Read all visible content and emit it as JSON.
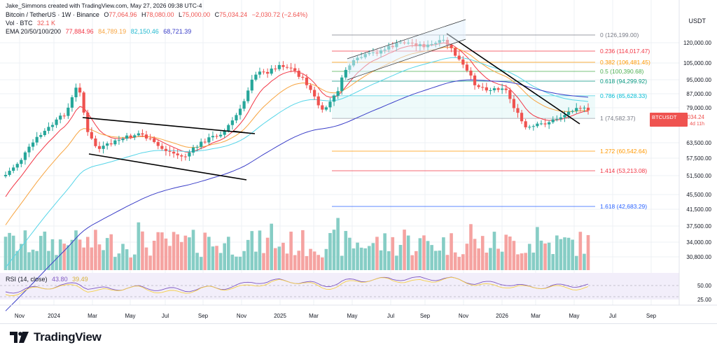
{
  "header": {
    "attribution": "Jake_Simmons created with TradingView.com, May 27, 2026 09:38 UTC-4",
    "symbol": "Bitcoin / TetherUS · 1W · Binance",
    "ohlc": {
      "o_label": "O",
      "o": "77,064.96",
      "h_label": "H",
      "h": "78,080.00",
      "l_label": "L",
      "l": "75,000.00",
      "c_label": "C",
      "c": "75,034.24",
      "change": "−2,030.72 (−2.64%)"
    },
    "vol_label": "Vol · BTC",
    "vol_value": "32.1 K",
    "ema_label": "EMA 20/50/100/200",
    "ema_values": [
      "77,884.96",
      "84,789.19",
      "82,150.46",
      "68,721.39"
    ],
    "rsi_label": "RSI (14, close)",
    "rsi_values": [
      "43.80",
      "39.49"
    ]
  },
  "colors": {
    "up": "#26a69a",
    "down": "#ef5350",
    "vol_up": "#86cdc5",
    "vol_down": "#f5a3a1",
    "ema20": "#f23645",
    "ema50": "#f7a440",
    "ema100": "#56d5e8",
    "ema200": "#3a3ec8",
    "rsi": "#7e57c2",
    "rsi_ma": "#f5cf47",
    "trendline": "#000000"
  },
  "price_axis": {
    "unit": "USDT",
    "labels": [
      "120,000.00",
      "105,000.00",
      "95,000.00",
      "87,000.00",
      "79,000.00",
      "63,500.00",
      "57,500.00",
      "51,500.00",
      "45,500.00",
      "41,500.00",
      "37,500.00",
      "34,000.00",
      "30,800.00"
    ],
    "current_symbol": "BTCUSDT",
    "current_price": "75,034.24",
    "countdown": "4d 11h"
  },
  "rsi_axis": [
    "50.00",
    "25.00"
  ],
  "time_axis": [
    "Nov",
    "2024",
    "Mar",
    "May",
    "Jul",
    "Sep",
    "Nov",
    "2025",
    "Mar",
    "May",
    "Jul",
    "Sep",
    "Nov",
    "2026",
    "Mar",
    "May",
    "Jul",
    "Sep"
  ],
  "fib_levels": [
    {
      "label": "0 (126,199.00)",
      "color": "#787b86"
    },
    {
      "label": "0.236 (114,017.47)",
      "color": "#f23645"
    },
    {
      "label": "0.382 (106,481.45)",
      "color": "#ff9800"
    },
    {
      "label": "0.5 (100,390.68)",
      "color": "#4caf50"
    },
    {
      "label": "0.618 (94,299.92)",
      "color": "#089981"
    },
    {
      "label": "0.786 (85,628.33)",
      "color": "#00bcd4"
    },
    {
      "label": "1 (74,582.37)",
      "color": "#787b86"
    },
    {
      "label": "1.272 (60,542.64)",
      "color": "#ff9800"
    },
    {
      "label": "1.414 (53,213.08)",
      "color": "#f23645"
    },
    {
      "label": "1.618 (42,683.29)",
      "color": "#2962ff"
    }
  ],
  "footer": {
    "brand": "TradingView"
  },
  "chart_data": {
    "type": "candlestick",
    "title": "Bitcoin / TetherUS · 1W · Binance",
    "y_unit": "USDT",
    "x_range": [
      "Nov 2023",
      "Sep 2026"
    ],
    "ylim": [
      28000,
      135000
    ],
    "candles_sample": [
      {
        "date": "2024-01",
        "open": 42000,
        "close": 43000
      },
      {
        "date": "2024-03",
        "open": 62000,
        "close": 68000
      },
      {
        "date": "2024-11",
        "open": 69000,
        "close": 98000
      },
      {
        "date": "2025-01",
        "open": 94000,
        "close": 102000
      },
      {
        "date": "2025-04",
        "open": 82000,
        "close": 94000
      },
      {
        "date": "2025-10",
        "open": 114000,
        "close": 124000
      },
      {
        "date": "2026-02",
        "open": 78000,
        "close": 68000
      },
      {
        "date": "2026-05",
        "open": 77065,
        "high": 78080,
        "low": 75000,
        "close": 75034.24
      }
    ],
    "rsi": {
      "period": 14,
      "value": 43.8,
      "ma": 39.49,
      "levels": [
        50,
        25
      ]
    }
  }
}
